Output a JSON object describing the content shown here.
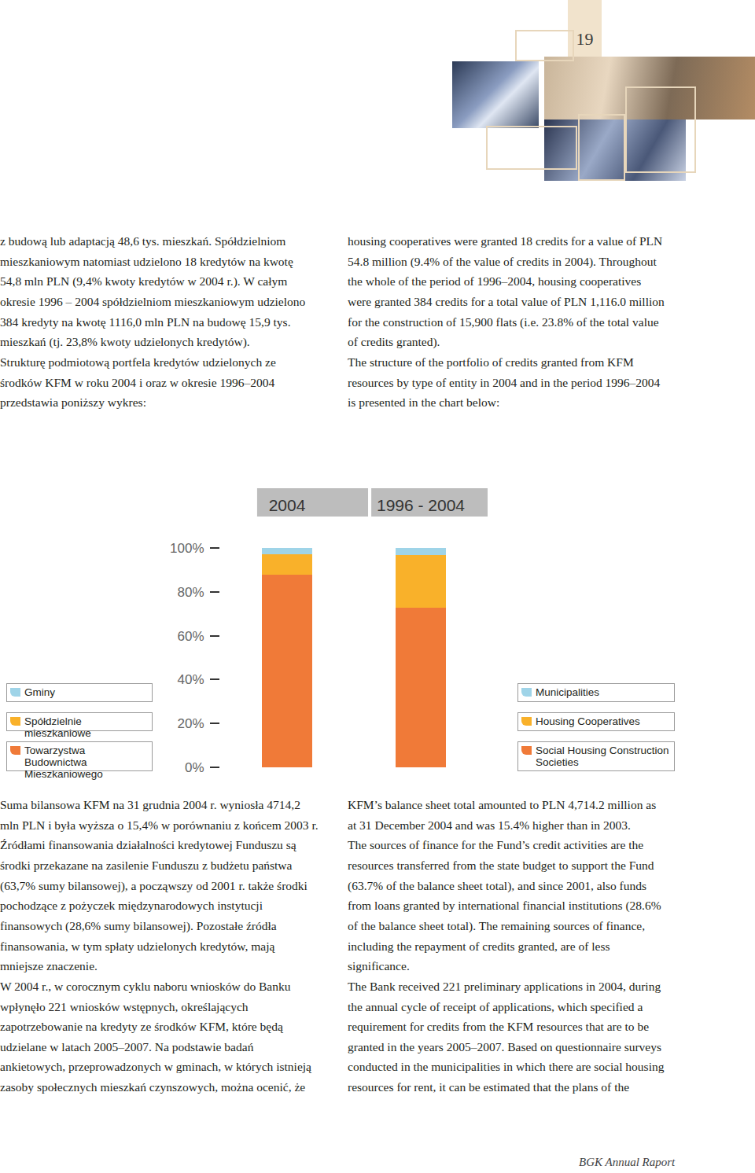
{
  "page_number": "19",
  "footer": "BGK Annual Raport",
  "text_top": {
    "pl": [
      "z budową lub adaptacją 48,6 tys. mieszkań. Spółdzielniom",
      "mieszkaniowym natomiast udzielono 18 kredytów na kwotę",
      "54,8 mln PLN (9,4% kwoty kredytów w 2004 r.). W całym",
      "okresie 1996 – 2004 spółdzielniom mieszkaniowym udzielono",
      "384 kredyty na kwotę 1116,0 mln PLN na budowę 15,9 tys.",
      "mieszkań (tj. 23,8% kwoty udzielonych kredytów).",
      "Strukturę podmiotową portfela kredytów udzielonych ze",
      "środków KFM w roku 2004 i oraz w okresie 1996–2004",
      "przedstawia poniższy wykres:"
    ],
    "en": [
      "housing cooperatives were granted 18 credits for a value of PLN",
      "54.8 million (9.4% of the value of credits in 2004). Throughout",
      "the whole of the period of 1996–2004, housing cooperatives",
      "were granted 384 credits for a total value of PLN 1,116.0 million",
      "for the construction of 15,900 flats (i.e. 23.8% of the total value",
      "of credits granted).",
      "The structure of the portfolio of credits granted from KFM",
      "resources by type of entity in 2004 and in the period 1996–2004",
      "is presented in the chart below:"
    ]
  },
  "text_bottom": {
    "pl": [
      "Suma bilansowa KFM na 31 grudnia 2004 r. wyniosła 4714,2",
      "mln PLN i była wyższa o 15,4% w porównaniu z końcem 2003 r.",
      "Źródłami finansowania działalności kredytowej Funduszu są",
      "środki przekazane na zasilenie Funduszu z budżetu państwa",
      "(63,7% sumy bilansowej), a począwszy od 2001 r. także środki",
      "pochodzące z pożyczek międzynarodowych instytucji",
      "finansowych (28,6% sumy bilansowej). Pozostałe źródła",
      "finansowania, w tym spłaty udzielonych kredytów, mają",
      "mniejsze znaczenie.",
      "W 2004 r., w corocznym cyklu naboru wniosków do Banku",
      "wpłynęło 221 wniosków wstępnych, określających",
      "zapotrzebowanie na kredyty ze środków KFM, które będą",
      "udzielane w latach 2005–2007. Na podstawie badań",
      "ankietowych, przeprowadzonych w gminach, w których istnieją",
      "zasoby społecznych mieszkań czynszowych, można ocenić, że"
    ],
    "en": [
      "KFM’s balance sheet total amounted to PLN 4,714.2 million as",
      "at 31 December 2004 and was 15.4% higher than in 2003.",
      "The sources of finance for the Fund’s credit activities are the",
      "resources transferred from the state budget to support the Fund",
      "(63.7% of the balance sheet total), and since 2001, also funds",
      "from loans granted by international financial institutions (28.6%",
      "of the balance sheet total). The remaining sources of finance,",
      "including the repayment of credits granted, are of less",
      "significance.",
      "The Bank received 221 preliminary applications in 2004, during",
      "the annual cycle of receipt of applications, which specified a",
      "requirement for credits from the KFM resources that are to be",
      "granted in the years 2005–2007. Based on questionnaire surveys",
      "conducted in the municipalities in which there are social housing",
      "resources for rent, it can be estimated that the plans of the"
    ]
  },
  "chart_data": {
    "type": "bar",
    "stacked": true,
    "grid": false,
    "categories": [
      "2004",
      "1996 - 2004"
    ],
    "series": [
      {
        "name": "Social Housing Construction Societies",
        "name_pl": "Towarzystwa Budownictwa Mieszkaniowego",
        "color": "#f07a38",
        "values": [
          87.8,
          72.8
        ]
      },
      {
        "name": "Housing Cooperatives",
        "name_pl": "Spółdzielnie mieszkaniowe",
        "color": "#f9b12a",
        "values": [
          9.4,
          23.8
        ]
      },
      {
        "name": "Municipalities",
        "name_pl": "Gminy",
        "color": "#9fd4e8",
        "values": [
          2.8,
          3.4
        ]
      }
    ],
    "ylim": [
      0,
      100
    ],
    "yticks": [
      {
        "value": 0,
        "label": "0%"
      },
      {
        "value": 20,
        "label": "20%"
      },
      {
        "value": 40,
        "label": "40%"
      },
      {
        "value": 60,
        "label": "60%"
      },
      {
        "value": 80,
        "label": "80%"
      },
      {
        "value": 100,
        "label": "100%"
      }
    ]
  }
}
